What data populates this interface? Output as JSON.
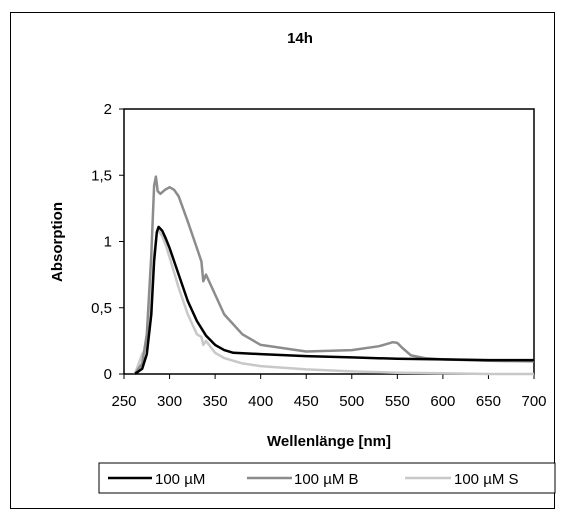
{
  "chart_data": {
    "type": "line",
    "title": "14h",
    "xlabel": "Wellenlänge [nm]",
    "ylabel": "Absorption",
    "xlim": [
      250,
      700
    ],
    "ylim": [
      0,
      2
    ],
    "xticks": [
      250,
      300,
      350,
      400,
      450,
      500,
      550,
      600,
      650,
      700
    ],
    "xtick_labels": [
      "250",
      "300",
      "350",
      "400",
      "450",
      "500",
      "550",
      "600",
      "650",
      "700"
    ],
    "yticks": [
      0,
      0.5,
      1,
      1.5,
      2
    ],
    "ytick_labels": [
      "0",
      "0,5",
      "1",
      "1,5",
      "2"
    ],
    "legend_position": "bottom",
    "grid": false,
    "series": [
      {
        "name": "100 µM",
        "color": "#000000",
        "x": [
          262,
          270,
          275,
          280,
          283,
          286,
          288,
          292,
          296,
          300,
          310,
          320,
          330,
          340,
          350,
          360,
          370,
          400,
          450,
          500,
          550,
          600,
          650,
          700
        ],
        "y": [
          0.0,
          0.04,
          0.15,
          0.45,
          0.85,
          1.07,
          1.11,
          1.08,
          1.02,
          0.95,
          0.75,
          0.55,
          0.4,
          0.29,
          0.22,
          0.18,
          0.16,
          0.15,
          0.135,
          0.125,
          0.115,
          0.11,
          0.105,
          0.105
        ]
      },
      {
        "name": "100 µM B",
        "color": "#8c8c8c",
        "x": [
          262,
          270,
          275,
          280,
          283,
          285,
          287,
          290,
          295,
          300,
          305,
          310,
          320,
          330,
          335,
          337,
          340,
          350,
          360,
          380,
          400,
          450,
          500,
          530,
          545,
          550,
          555,
          565,
          580,
          600,
          650,
          700
        ],
        "y": [
          0.0,
          0.08,
          0.3,
          0.9,
          1.42,
          1.49,
          1.38,
          1.36,
          1.39,
          1.41,
          1.39,
          1.34,
          1.15,
          0.95,
          0.85,
          0.7,
          0.75,
          0.6,
          0.45,
          0.3,
          0.22,
          0.17,
          0.18,
          0.21,
          0.24,
          0.235,
          0.2,
          0.14,
          0.12,
          0.11,
          0.1,
          0.095
        ]
      },
      {
        "name": "100 µM S",
        "color": "#c8c8c8",
        "x": [
          262,
          270,
          275,
          280,
          283,
          286,
          288,
          292,
          296,
          300,
          310,
          320,
          330,
          335,
          337,
          340,
          350,
          360,
          380,
          400,
          450,
          500,
          550,
          600,
          650,
          700
        ],
        "y": [
          0.0,
          0.15,
          0.2,
          0.55,
          0.9,
          1.06,
          1.08,
          1.04,
          0.97,
          0.88,
          0.65,
          0.45,
          0.3,
          0.28,
          0.22,
          0.25,
          0.16,
          0.12,
          0.08,
          0.06,
          0.035,
          0.02,
          0.01,
          0.005,
          0.0,
          0.0
        ]
      }
    ]
  }
}
